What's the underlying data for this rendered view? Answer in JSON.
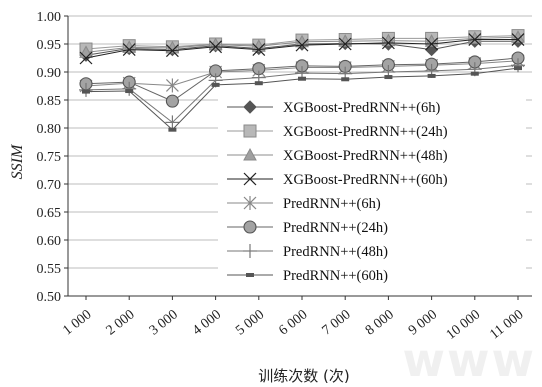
{
  "chart_data": {
    "type": "line",
    "title": "",
    "xlabel": "训练次数 (次)",
    "ylabel": "SSIM",
    "categories": [
      "1 000",
      "2 000",
      "3 000",
      "4 000",
      "5 000",
      "6 000",
      "7 000",
      "8 000",
      "9 000",
      "10 000",
      "11 000"
    ],
    "yticks": [
      "0.50",
      "0.55",
      "0.60",
      "0.65",
      "0.70",
      "0.75",
      "0.80",
      "0.85",
      "0.90",
      "0.95",
      "1.00"
    ],
    "ylim": [
      0.5,
      1.0
    ],
    "legend_position": "right-center",
    "series": [
      {
        "name": "XGBoost-PredRNN++(6h)",
        "marker": "diamond",
        "color": "#555555",
        "values": [
          0.93,
          0.942,
          0.94,
          0.947,
          0.942,
          0.95,
          0.951,
          0.95,
          0.94,
          0.955,
          0.955
        ]
      },
      {
        "name": "XGBoost-PredRNN++(24h)",
        "marker": "square",
        "color": "#9a9a9a",
        "values": [
          0.941,
          0.947,
          0.945,
          0.95,
          0.948,
          0.957,
          0.958,
          0.96,
          0.96,
          0.963,
          0.965
        ]
      },
      {
        "name": "XGBoost-PredRNN++(48h)",
        "marker": "triangle",
        "color": "#8c8c8c",
        "values": [
          0.935,
          0.944,
          0.943,
          0.949,
          0.946,
          0.954,
          0.955,
          0.956,
          0.955,
          0.96,
          0.962
        ]
      },
      {
        "name": "XGBoost-PredRNN++(60h)",
        "marker": "x",
        "color": "#222222",
        "values": [
          0.925,
          0.94,
          0.938,
          0.945,
          0.94,
          0.948,
          0.95,
          0.952,
          0.95,
          0.958,
          0.958
        ]
      },
      {
        "name": "PredRNN++(6h)",
        "marker": "star",
        "color": "#888888",
        "values": [
          0.875,
          0.88,
          0.876,
          0.9,
          0.903,
          0.908,
          0.908,
          0.91,
          0.912,
          0.915,
          0.92
        ]
      },
      {
        "name": "PredRNN++(24h)",
        "marker": "circle",
        "color": "#666666",
        "values": [
          0.879,
          0.882,
          0.848,
          0.902,
          0.906,
          0.911,
          0.91,
          0.913,
          0.914,
          0.918,
          0.925
        ]
      },
      {
        "name": "PredRNN++(48h)",
        "marker": "plus",
        "color": "#777777",
        "values": [
          0.868,
          0.87,
          0.81,
          0.885,
          0.89,
          0.898,
          0.897,
          0.9,
          0.902,
          0.905,
          0.912
        ]
      },
      {
        "name": "PredRNN++(60h)",
        "marker": "dash",
        "color": "#555555",
        "values": [
          0.865,
          0.866,
          0.797,
          0.877,
          0.88,
          0.888,
          0.887,
          0.891,
          0.893,
          0.897,
          0.907
        ]
      }
    ]
  },
  "watermark_text": "www"
}
